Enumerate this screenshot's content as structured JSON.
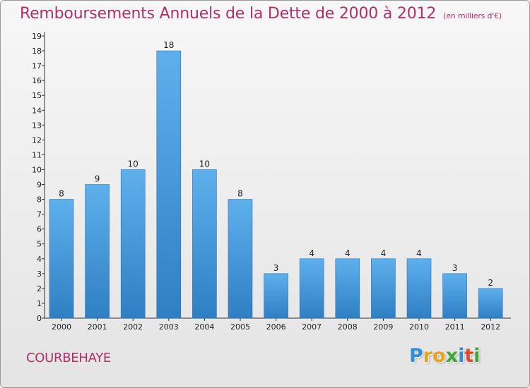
{
  "header": {
    "title": "Remboursements Annuels de la Dette de 2000 à 2012",
    "unit": "(en milliers d'€)"
  },
  "footer": {
    "city": "COURBEHAYE",
    "logo": "Proxiti"
  },
  "colors": {
    "title": "#b0306a",
    "bar_top": "#5eb0ec",
    "bar_bottom": "#2f7fc4"
  },
  "chart_data": {
    "type": "bar",
    "title": "Remboursements Annuels de la Dette de 2000 à 2012",
    "xlabel": "",
    "ylabel": "",
    "categories": [
      "2000",
      "2001",
      "2002",
      "2003",
      "2004",
      "2005",
      "2006",
      "2007",
      "2008",
      "2009",
      "2010",
      "2011",
      "2012"
    ],
    "values": [
      8,
      9,
      10,
      18,
      10,
      8,
      3,
      4,
      4,
      4,
      4,
      3,
      2
    ],
    "data_labels": [
      "8",
      "9",
      "10",
      "18",
      "10",
      "8",
      "3",
      "4",
      "4",
      "4",
      "4",
      "3",
      "2"
    ],
    "ylim": [
      0,
      19
    ],
    "yticks": [
      "0",
      "1",
      "2",
      "3",
      "4",
      "5",
      "6",
      "7",
      "8",
      "9",
      "10",
      "11",
      "12",
      "13",
      "14",
      "15",
      "16",
      "17",
      "18",
      "19"
    ],
    "grid": false,
    "legend": "none"
  }
}
